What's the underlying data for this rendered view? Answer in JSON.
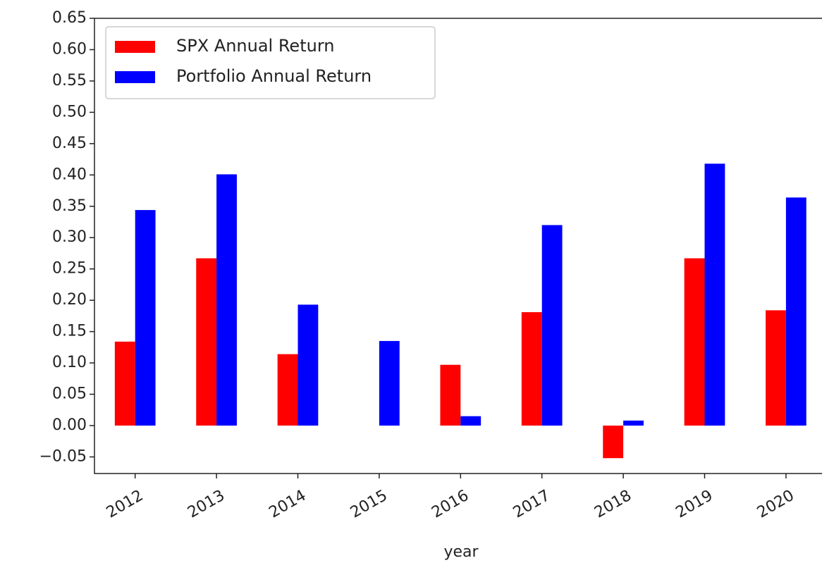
{
  "chart_data": {
    "type": "bar",
    "categories": [
      "2012",
      "2013",
      "2014",
      "2015",
      "2016",
      "2017",
      "2018",
      "2019",
      "2020"
    ],
    "series": [
      {
        "name": "SPX Annual Return",
        "color": "#ff0000",
        "values": [
          0.134,
          0.267,
          0.114,
          0,
          0.097,
          0.181,
          -0.052,
          0.267,
          0.184
        ]
      },
      {
        "name": "Portfolio Annual Return",
        "color": "#0000ff",
        "values": [
          0.344,
          0.401,
          0.193,
          0.135,
          0.015,
          0.32,
          0.008,
          0.418,
          0.364
        ]
      }
    ],
    "xlabel": "year",
    "ylim": [
      -0.0765,
      0.65
    ],
    "yticks": [
      {
        "value": -0.05,
        "label": "−0.05"
      },
      {
        "value": 0,
        "label": "0.00"
      },
      {
        "value": 0.05,
        "label": "0.05"
      },
      {
        "value": 0.1,
        "label": "0.10"
      },
      {
        "value": 0.15,
        "label": "0.15"
      },
      {
        "value": 0.2,
        "label": "0.20"
      },
      {
        "value": 0.25,
        "label": "0.25"
      },
      {
        "value": 0.3,
        "label": "0.30"
      },
      {
        "value": 0.35,
        "label": "0.35"
      },
      {
        "value": 0.4,
        "label": "0.40"
      },
      {
        "value": 0.45,
        "label": "0.45"
      },
      {
        "value": 0.5,
        "label": "0.50"
      },
      {
        "value": 0.55,
        "label": "0.55"
      },
      {
        "value": 0.6,
        "label": "0.60"
      },
      {
        "value": 0.65,
        "label": "0.65"
      }
    ],
    "legend": "upper left",
    "grid": false
  }
}
